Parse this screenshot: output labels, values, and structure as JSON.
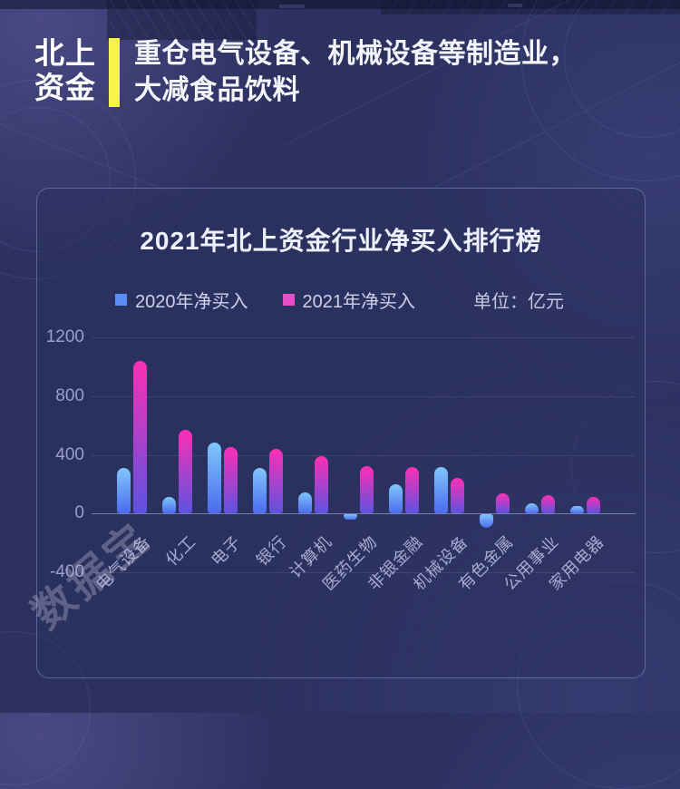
{
  "header": {
    "brand_line1": "北上",
    "brand_line2": "资金",
    "headline_line1": "重仓电气设备、机械设备等制造业，",
    "headline_line2": "大减食品饮料"
  },
  "watermark": "数据宝",
  "colors": {
    "divider_yellow": "#f7f34a",
    "legend_2020": "#5a8cf5",
    "legend_2021": "#e64ec8",
    "bar_2020_top": "#7fc6fa",
    "bar_2020_bottom": "#4b6bf0",
    "bar_2021_top": "#fb2fb4",
    "bar_2021_bottom": "#5c53e0"
  },
  "chart_data": {
    "type": "bar",
    "title": "2021年北上资金行业净买入排行榜",
    "unit_label": "单位：亿元",
    "legend_position": "top",
    "grid": true,
    "ylim": [
      -400,
      1200
    ],
    "yticks": [
      1200,
      800,
      400,
      0,
      -400
    ],
    "categories": [
      "电气设备",
      "化工",
      "电子",
      "银行",
      "计算机",
      "医药生物",
      "非银金融",
      "机械设备",
      "有色金属",
      "公用事业",
      "家用电器"
    ],
    "series": [
      {
        "name": "2020年净买入",
        "values": [
          310,
          115,
          485,
          310,
          145,
          -35,
          200,
          315,
          -90,
          70,
          50
        ]
      },
      {
        "name": "2021年净买入",
        "values": [
          1040,
          570,
          455,
          440,
          390,
          320,
          315,
          240,
          140,
          125,
          115
        ]
      }
    ]
  }
}
